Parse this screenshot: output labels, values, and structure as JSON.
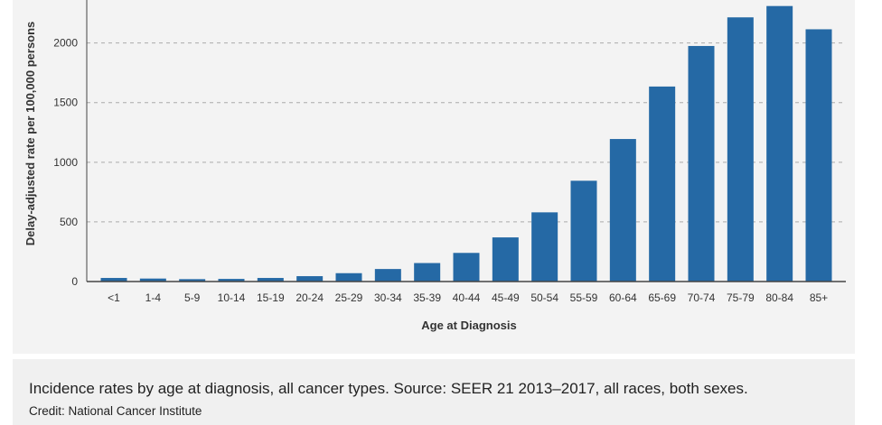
{
  "chart_data": {
    "type": "bar",
    "categories": [
      "<1",
      "1-4",
      "5-9",
      "10-14",
      "15-19",
      "20-24",
      "25-29",
      "30-34",
      "35-39",
      "40-44",
      "45-49",
      "50-54",
      "55-59",
      "60-64",
      "65-69",
      "70-74",
      "75-79",
      "80-84",
      "85+"
    ],
    "values": [
      30,
      25,
      20,
      22,
      30,
      45,
      70,
      105,
      155,
      240,
      370,
      580,
      845,
      1195,
      1635,
      1975,
      2215,
      2310,
      2115
    ],
    "xlabel": "Age at Diagnosis",
    "ylabel": "Delay-adjusted rate per 100,000 persons",
    "ylim": [
      0,
      2300
    ],
    "yticks": [
      0,
      500,
      1000,
      1500,
      2000
    ],
    "grid": true,
    "bar_color": "#2569a5"
  },
  "caption": {
    "text": "Incidence rates by age at diagnosis, all cancer types. Source: SEER 21 2013–2017, all races, both sexes.",
    "credit": "Credit: National Cancer Institute"
  }
}
